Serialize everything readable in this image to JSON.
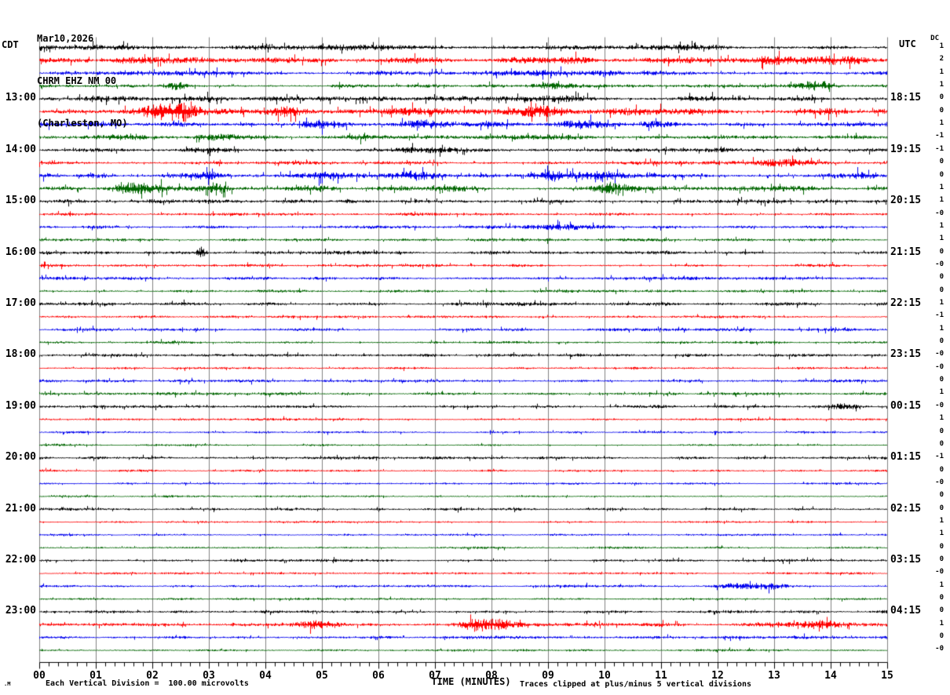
{
  "title": {
    "date": "Mar10,2026",
    "station": "CHRM EHZ NM 00",
    "location": "(Charleston, MO)"
  },
  "axes": {
    "left_timezone": "CDT",
    "right_timezone": "UTC",
    "dc_header": "DC",
    "x_label": "TIME (MINUTES)",
    "x_ticks": [
      "00",
      "01",
      "02",
      "03",
      "04",
      "05",
      "06",
      "07",
      "08",
      "09",
      "10",
      "11",
      "12",
      "13",
      "14",
      "15"
    ],
    "footer_left": "Each Vertical Division =  100.00 microvolts",
    "footer_right": "Traces clipped at plus/minus 5 vertical divisions",
    "corner_mark": ".M"
  },
  "chart_data": {
    "type": "line",
    "title": "CHRM EHZ NM 00 (Charleston, MO) helicorder, Mar10,2026",
    "xlabel": "TIME (MINUTES)",
    "x_range": [
      0,
      15
    ],
    "minutes_per_line": 15,
    "grid": "vertical-minute-lines",
    "legend_position": "none",
    "colors": {
      "k": "#000000",
      "r": "#ff0000",
      "b": "#0000ee",
      "g": "#006600",
      "grid": "#808080",
      "axis": "#000000"
    },
    "rows": [
      {
        "c": "k",
        "dc": "1",
        "left": null,
        "right": null,
        "amp": 2.0,
        "spike": 0.06,
        "bursts": [
          [
            1.0,
            0.4,
            1.5
          ],
          [
            5.3,
            0.4,
            1.5
          ],
          [
            11.5,
            0.5,
            1.5
          ]
        ]
      },
      {
        "c": "r",
        "dc": "2",
        "left": null,
        "right": null,
        "amp": 2.7,
        "spike": 0.06,
        "bursts": [
          [
            1.9,
            0.3,
            2.5
          ],
          [
            4.2,
            0.3,
            2.0
          ],
          [
            6.4,
            0.3,
            2.0
          ],
          [
            9.0,
            0.4,
            2.0
          ],
          [
            13.0,
            0.5,
            3.0
          ],
          [
            14.3,
            0.3,
            3.0
          ]
        ]
      },
      {
        "c": "b",
        "dc": "1",
        "left": null,
        "right": null,
        "amp": 2.2,
        "spike": 0.05,
        "bursts": [
          [
            3.2,
            0.4,
            1.5
          ],
          [
            8.6,
            1.2,
            1.5
          ]
        ]
      },
      {
        "c": "g",
        "dc": "1",
        "left": null,
        "right": null,
        "amp": 1.8,
        "spike": 0.04,
        "bursts": [
          [
            2.4,
            0.15,
            4.0
          ],
          [
            9.2,
            0.4,
            2.0
          ],
          [
            13.7,
            0.25,
            6.0
          ]
        ]
      },
      {
        "c": "k",
        "dc": "0",
        "left": "13:00",
        "right": "18:15",
        "amp": 2.4,
        "spike": 0.08,
        "bursts": [
          [
            4.5,
            0.5,
            1.2
          ],
          [
            9.2,
            0.5,
            1.2
          ]
        ]
      },
      {
        "c": "r",
        "dc": "0",
        "left": null,
        "right": null,
        "amp": 2.8,
        "spike": 0.06,
        "bursts": [
          [
            2.2,
            0.3,
            9.0
          ],
          [
            2.6,
            0.2,
            5.0
          ],
          [
            4.35,
            0.25,
            5.0
          ],
          [
            6.4,
            0.3,
            3.0
          ],
          [
            8.8,
            0.35,
            4.0
          ],
          [
            10.4,
            0.3,
            3.0
          ],
          [
            13.9,
            0.3,
            3.0
          ]
        ]
      },
      {
        "c": "b",
        "dc": "1",
        "left": null,
        "right": null,
        "amp": 2.4,
        "spike": 0.06,
        "bursts": [
          [
            5.0,
            0.3,
            3.0
          ],
          [
            6.8,
            0.25,
            4.0
          ],
          [
            9.6,
            0.3,
            3.0
          ],
          [
            10.9,
            0.25,
            3.0
          ]
        ]
      },
      {
        "c": "g",
        "dc": "-1",
        "left": null,
        "right": null,
        "amp": 2.0,
        "spike": 0.05,
        "bursts": [
          [
            1.5,
            0.3,
            3.0
          ],
          [
            3.2,
            0.3,
            2.0
          ],
          [
            5.6,
            0.3,
            2.0
          ],
          [
            9.3,
            0.4,
            2.0
          ]
        ]
      },
      {
        "c": "k",
        "dc": "-1",
        "left": "14:00",
        "right": "19:15",
        "amp": 1.9,
        "spike": 0.06,
        "bursts": [
          [
            3.0,
            0.3,
            2.0
          ],
          [
            7.0,
            0.5,
            1.5
          ]
        ]
      },
      {
        "c": "r",
        "dc": "0",
        "left": null,
        "right": null,
        "amp": 1.7,
        "spike": 0.05,
        "bursts": [
          [
            13.2,
            0.4,
            2.5
          ]
        ]
      },
      {
        "c": "b",
        "dc": "0",
        "left": null,
        "right": null,
        "amp": 2.2,
        "spike": 0.08,
        "bursts": [
          [
            3.0,
            0.2,
            4.0
          ],
          [
            5.0,
            0.3,
            3.0
          ],
          [
            6.6,
            0.25,
            4.0
          ],
          [
            9.1,
            0.3,
            4.0
          ],
          [
            9.9,
            0.25,
            4.0
          ],
          [
            14.6,
            0.2,
            3.0
          ]
        ]
      },
      {
        "c": "g",
        "dc": "1",
        "left": null,
        "right": null,
        "amp": 2.0,
        "spike": 0.06,
        "bursts": [
          [
            1.55,
            0.2,
            5.0
          ],
          [
            1.95,
            0.2,
            5.0
          ],
          [
            3.1,
            0.2,
            5.0
          ],
          [
            4.75,
            0.3,
            3.0
          ],
          [
            7.4,
            0.3,
            3.0
          ],
          [
            10.15,
            0.25,
            5.0
          ],
          [
            13.1,
            0.3,
            2.0
          ]
        ]
      },
      {
        "c": "k",
        "dc": "1",
        "left": "15:00",
        "right": "20:15",
        "amp": 1.8,
        "spike": 0.06,
        "bursts": []
      },
      {
        "c": "r",
        "dc": "-0",
        "left": null,
        "right": null,
        "amp": 1.5,
        "spike": 0.04,
        "bursts": []
      },
      {
        "c": "b",
        "dc": "1",
        "left": null,
        "right": null,
        "amp": 1.6,
        "spike": 0.05,
        "bursts": [
          [
            9.3,
            0.4,
            2.0
          ]
        ]
      },
      {
        "c": "g",
        "dc": "1",
        "left": null,
        "right": null,
        "amp": 1.5,
        "spike": 0.04,
        "bursts": []
      },
      {
        "c": "k",
        "dc": "0",
        "left": "16:00",
        "right": "21:15",
        "amp": 1.6,
        "spike": 0.05,
        "bursts": [
          [
            2.85,
            0.06,
            6.0
          ]
        ]
      },
      {
        "c": "r",
        "dc": "-0",
        "left": null,
        "right": null,
        "amp": 1.4,
        "spike": 0.04,
        "bursts": []
      },
      {
        "c": "b",
        "dc": "0",
        "left": null,
        "right": null,
        "amp": 1.5,
        "spike": 0.05,
        "bursts": []
      },
      {
        "c": "g",
        "dc": "0",
        "left": null,
        "right": null,
        "amp": 1.4,
        "spike": 0.04,
        "bursts": []
      },
      {
        "c": "k",
        "dc": "1",
        "left": "17:00",
        "right": "22:15",
        "amp": 1.7,
        "spike": 0.06,
        "bursts": []
      },
      {
        "c": "r",
        "dc": "-1",
        "left": null,
        "right": null,
        "amp": 1.3,
        "spike": 0.04,
        "bursts": []
      },
      {
        "c": "b",
        "dc": "1",
        "left": null,
        "right": null,
        "amp": 1.5,
        "spike": 0.05,
        "bursts": []
      },
      {
        "c": "g",
        "dc": "0",
        "left": null,
        "right": null,
        "amp": 1.4,
        "spike": 0.04,
        "bursts": []
      },
      {
        "c": "k",
        "dc": "-0",
        "left": "18:00",
        "right": "23:15",
        "amp": 1.5,
        "spike": 0.05,
        "bursts": []
      },
      {
        "c": "r",
        "dc": "-0",
        "left": null,
        "right": null,
        "amp": 1.2,
        "spike": 0.04,
        "bursts": []
      },
      {
        "c": "b",
        "dc": "0",
        "left": null,
        "right": null,
        "amp": 1.4,
        "spike": 0.06,
        "bursts": []
      },
      {
        "c": "g",
        "dc": "1",
        "left": null,
        "right": null,
        "amp": 1.4,
        "spike": 0.06,
        "bursts": []
      },
      {
        "c": "k",
        "dc": "-0",
        "left": "19:00",
        "right": "00:15",
        "amp": 1.5,
        "spike": 0.05,
        "bursts": [
          [
            14.25,
            0.2,
            3.0
          ]
        ]
      },
      {
        "c": "r",
        "dc": "1",
        "left": null,
        "right": null,
        "amp": 1.2,
        "spike": 0.04,
        "bursts": []
      },
      {
        "c": "b",
        "dc": "0",
        "left": null,
        "right": null,
        "amp": 1.2,
        "spike": 0.04,
        "bursts": []
      },
      {
        "c": "g",
        "dc": "0",
        "left": null,
        "right": null,
        "amp": 1.2,
        "spike": 0.04,
        "bursts": []
      },
      {
        "c": "k",
        "dc": "-1",
        "left": "20:00",
        "right": "01:15",
        "amp": 1.4,
        "spike": 0.05,
        "bursts": []
      },
      {
        "c": "r",
        "dc": "0",
        "left": null,
        "right": null,
        "amp": 1.1,
        "spike": 0.03,
        "bursts": []
      },
      {
        "c": "b",
        "dc": "-0",
        "left": null,
        "right": null,
        "amp": 1.1,
        "spike": 0.03,
        "bursts": []
      },
      {
        "c": "g",
        "dc": "0",
        "left": null,
        "right": null,
        "amp": 1.1,
        "spike": 0.03,
        "bursts": []
      },
      {
        "c": "k",
        "dc": "0",
        "left": "21:00",
        "right": "02:15",
        "amp": 1.3,
        "spike": 0.05,
        "bursts": []
      },
      {
        "c": "r",
        "dc": "1",
        "left": null,
        "right": null,
        "amp": 1.1,
        "spike": 0.03,
        "bursts": []
      },
      {
        "c": "b",
        "dc": "1",
        "left": null,
        "right": null,
        "amp": 1.1,
        "spike": 0.03,
        "bursts": []
      },
      {
        "c": "g",
        "dc": "0",
        "left": null,
        "right": null,
        "amp": 1.1,
        "spike": 0.03,
        "bursts": []
      },
      {
        "c": "k",
        "dc": "0",
        "left": "22:00",
        "right": "03:15",
        "amp": 1.3,
        "spike": 0.05,
        "bursts": []
      },
      {
        "c": "r",
        "dc": "-0",
        "left": null,
        "right": null,
        "amp": 1.1,
        "spike": 0.03,
        "bursts": []
      },
      {
        "c": "b",
        "dc": "1",
        "left": null,
        "right": null,
        "amp": 1.3,
        "spike": 0.04,
        "bursts": [
          [
            12.3,
            0.25,
            3.0
          ],
          [
            12.9,
            0.2,
            3.0
          ]
        ]
      },
      {
        "c": "g",
        "dc": "0",
        "left": null,
        "right": null,
        "amp": 1.1,
        "spike": 0.03,
        "bursts": []
      },
      {
        "c": "k",
        "dc": "0",
        "left": "23:00",
        "right": "04:15",
        "amp": 1.5,
        "spike": 0.05,
        "bursts": []
      },
      {
        "c": "r",
        "dc": "1",
        "left": null,
        "right": null,
        "amp": 1.8,
        "spike": 0.05,
        "bursts": [
          [
            4.9,
            0.25,
            4.0
          ],
          [
            7.7,
            0.15,
            7.0
          ],
          [
            8.15,
            0.2,
            5.0
          ],
          [
            12.9,
            0.3,
            2.0
          ],
          [
            13.8,
            0.25,
            4.0
          ]
        ]
      },
      {
        "c": "b",
        "dc": "0",
        "left": null,
        "right": null,
        "amp": 1.4,
        "spike": 0.04,
        "bursts": []
      },
      {
        "c": "g",
        "dc": "-0",
        "left": null,
        "right": null,
        "amp": 1.2,
        "spike": 0.03,
        "bursts": []
      }
    ]
  }
}
